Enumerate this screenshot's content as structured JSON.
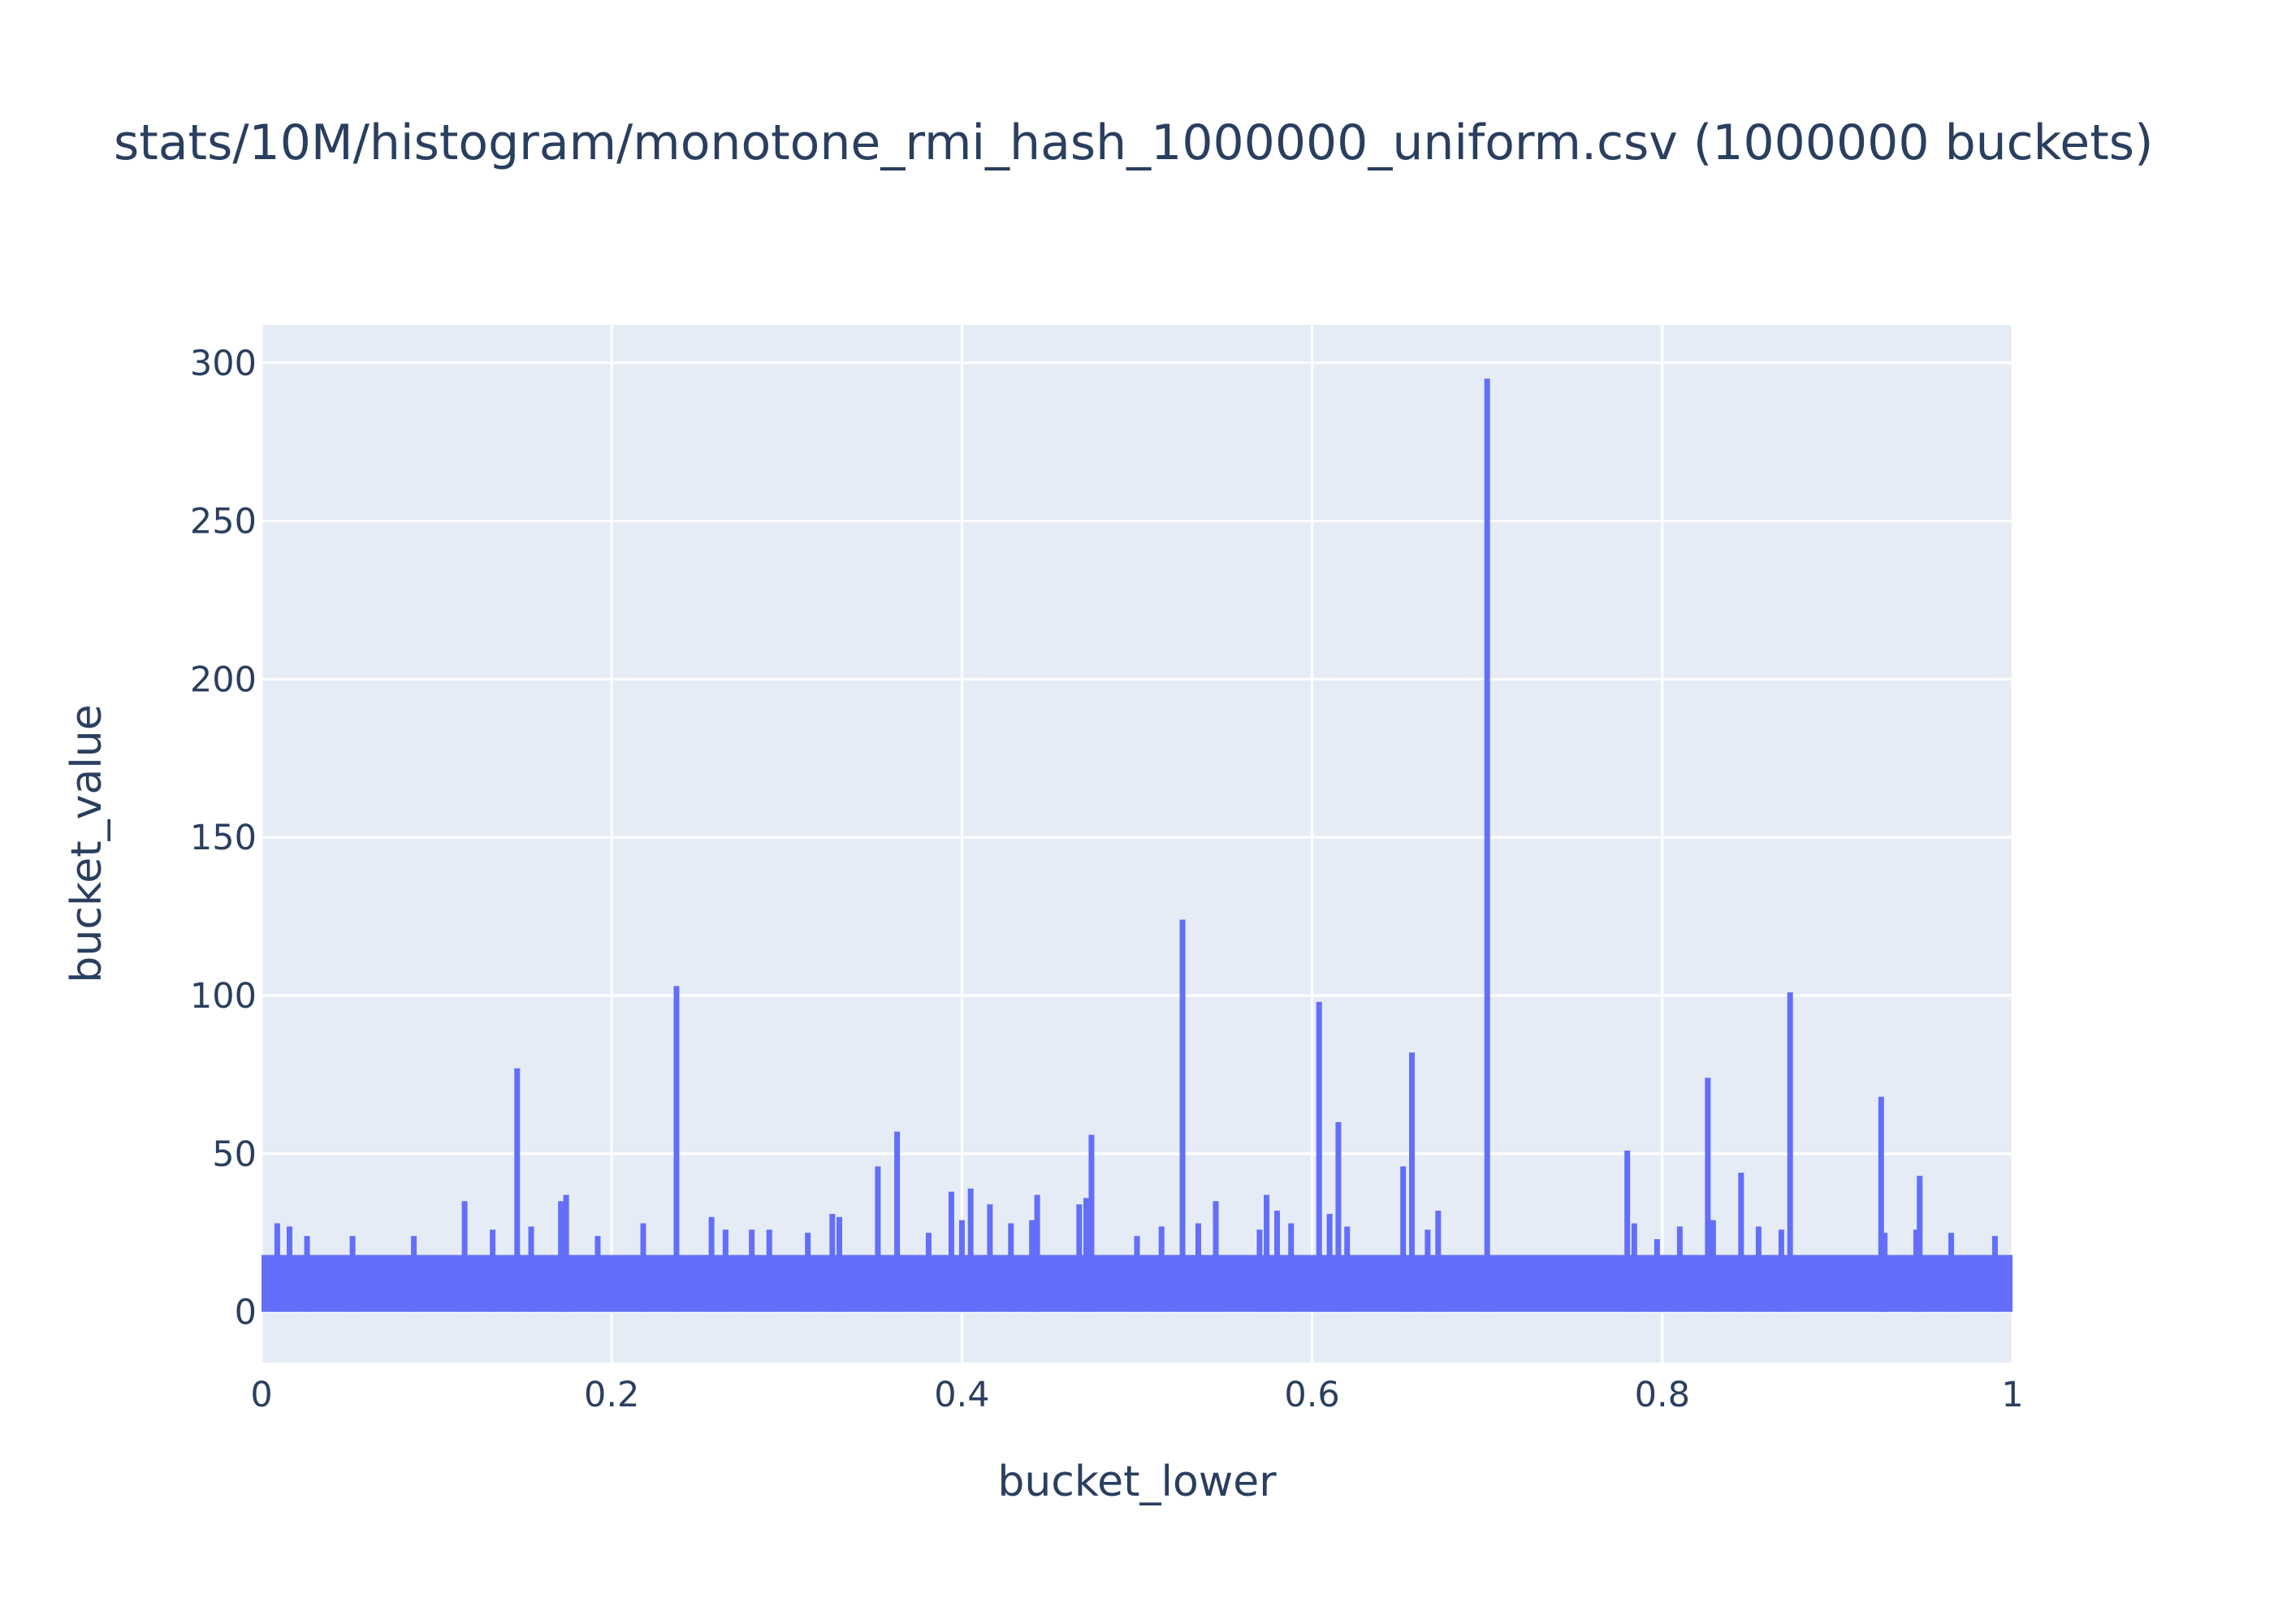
{
  "chart_data": {
    "type": "bar",
    "title": "stats/10M/histogram/monotone_rmi_hash_1000000_uniform.csv (1000000 buckets)",
    "xlabel": "bucket_lower",
    "ylabel": "bucket_value",
    "xlim": [
      0,
      1
    ],
    "ylim": [
      -16,
      312
    ],
    "x_ticks": [
      0,
      0.2,
      0.4,
      0.6,
      0.8,
      1
    ],
    "x_tick_labels": [
      "0",
      "0.2",
      "0.4",
      "0.6",
      "0.8",
      "1"
    ],
    "y_ticks": [
      0,
      50,
      100,
      150,
      200,
      250,
      300
    ],
    "y_tick_labels": [
      "0",
      "50",
      "100",
      "150",
      "200",
      "250",
      "300"
    ],
    "grid": true,
    "bar_color": "#636efa",
    "plot_background": "#e5ecf6",
    "baseline_band": [
      0,
      18
    ],
    "spikes": [
      {
        "x": 0.009,
        "y": 28
      },
      {
        "x": 0.016,
        "y": 27
      },
      {
        "x": 0.026,
        "y": 24
      },
      {
        "x": 0.052,
        "y": 24
      },
      {
        "x": 0.087,
        "y": 24
      },
      {
        "x": 0.116,
        "y": 35
      },
      {
        "x": 0.132,
        "y": 26
      },
      {
        "x": 0.146,
        "y": 77
      },
      {
        "x": 0.154,
        "y": 27
      },
      {
        "x": 0.171,
        "y": 35
      },
      {
        "x": 0.174,
        "y": 37
      },
      {
        "x": 0.192,
        "y": 24
      },
      {
        "x": 0.218,
        "y": 28
      },
      {
        "x": 0.237,
        "y": 103
      },
      {
        "x": 0.257,
        "y": 30
      },
      {
        "x": 0.265,
        "y": 26
      },
      {
        "x": 0.28,
        "y": 26
      },
      {
        "x": 0.29,
        "y": 26
      },
      {
        "x": 0.312,
        "y": 25
      },
      {
        "x": 0.326,
        "y": 31
      },
      {
        "x": 0.33,
        "y": 30
      },
      {
        "x": 0.352,
        "y": 46
      },
      {
        "x": 0.363,
        "y": 57
      },
      {
        "x": 0.381,
        "y": 25
      },
      {
        "x": 0.394,
        "y": 38
      },
      {
        "x": 0.4,
        "y": 29
      },
      {
        "x": 0.405,
        "y": 39
      },
      {
        "x": 0.416,
        "y": 34
      },
      {
        "x": 0.428,
        "y": 28
      },
      {
        "x": 0.44,
        "y": 29
      },
      {
        "x": 0.443,
        "y": 37
      },
      {
        "x": 0.467,
        "y": 34
      },
      {
        "x": 0.471,
        "y": 36
      },
      {
        "x": 0.474,
        "y": 56
      },
      {
        "x": 0.5,
        "y": 24
      },
      {
        "x": 0.514,
        "y": 27
      },
      {
        "x": 0.526,
        "y": 124
      },
      {
        "x": 0.535,
        "y": 28
      },
      {
        "x": 0.545,
        "y": 35
      },
      {
        "x": 0.57,
        "y": 26
      },
      {
        "x": 0.574,
        "y": 37
      },
      {
        "x": 0.58,
        "y": 32
      },
      {
        "x": 0.588,
        "y": 28
      },
      {
        "x": 0.604,
        "y": 98
      },
      {
        "x": 0.61,
        "y": 31
      },
      {
        "x": 0.615,
        "y": 60
      },
      {
        "x": 0.62,
        "y": 27
      },
      {
        "x": 0.652,
        "y": 46
      },
      {
        "x": 0.657,
        "y": 82
      },
      {
        "x": 0.666,
        "y": 26
      },
      {
        "x": 0.672,
        "y": 32
      },
      {
        "x": 0.7,
        "y": 295
      },
      {
        "x": 0.78,
        "y": 51
      },
      {
        "x": 0.784,
        "y": 28
      },
      {
        "x": 0.797,
        "y": 23
      },
      {
        "x": 0.81,
        "y": 27
      },
      {
        "x": 0.826,
        "y": 74
      },
      {
        "x": 0.829,
        "y": 29
      },
      {
        "x": 0.845,
        "y": 44
      },
      {
        "x": 0.855,
        "y": 27
      },
      {
        "x": 0.868,
        "y": 26
      },
      {
        "x": 0.873,
        "y": 101
      },
      {
        "x": 0.925,
        "y": 68
      },
      {
        "x": 0.927,
        "y": 25
      },
      {
        "x": 0.945,
        "y": 26
      },
      {
        "x": 0.947,
        "y": 43
      },
      {
        "x": 0.965,
        "y": 25
      },
      {
        "x": 0.99,
        "y": 24
      }
    ]
  }
}
